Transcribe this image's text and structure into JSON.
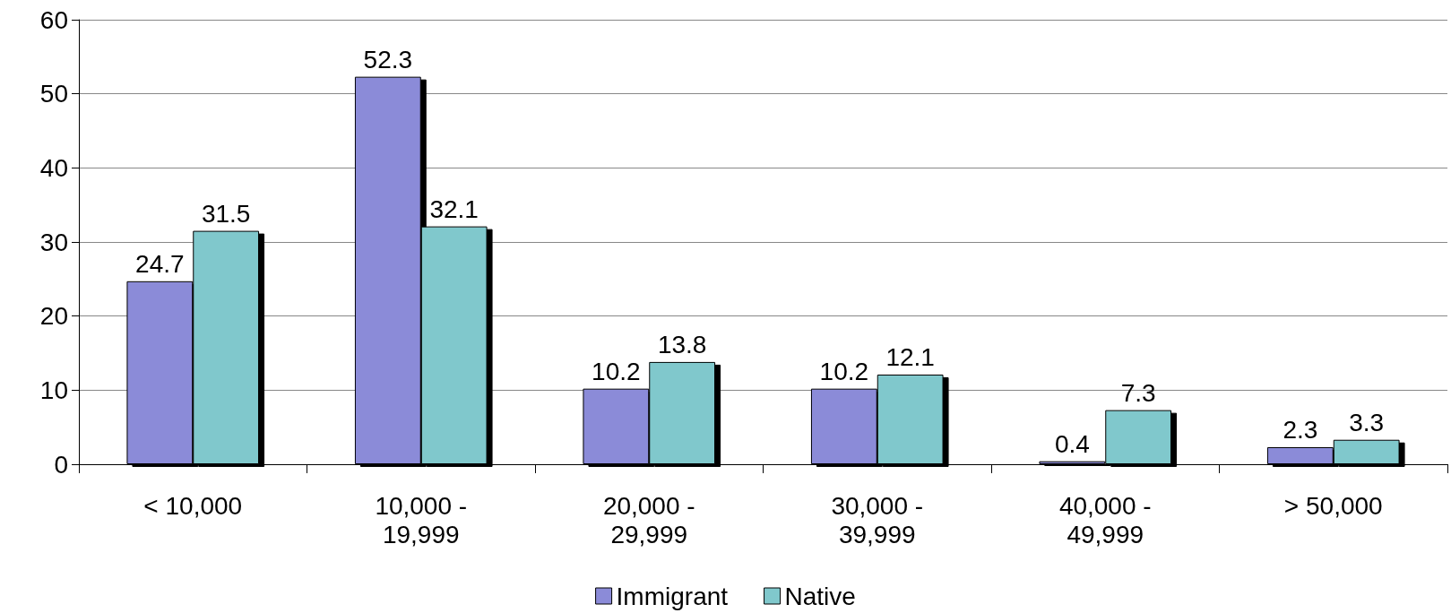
{
  "chart_data": {
    "type": "bar",
    "categories": [
      "< 10,000",
      "10,000 - 19,999",
      "20,000 - 29,999",
      "30,000 - 39,999",
      "40,000 - 49,999",
      "> 50,000"
    ],
    "series": [
      {
        "name": "Immigrant",
        "color": "#8b8bd8",
        "values": [
          24.7,
          52.3,
          10.2,
          10.2,
          0.4,
          2.3
        ]
      },
      {
        "name": "Native",
        "color": "#80c8cc",
        "values": [
          31.5,
          32.1,
          13.8,
          12.1,
          7.3,
          3.3
        ]
      }
    ],
    "ylim": [
      0,
      60
    ],
    "yticks": [
      0,
      10,
      20,
      30,
      40,
      50,
      60
    ],
    "grid": "y",
    "legend": "bottom",
    "data_labels": true
  }
}
